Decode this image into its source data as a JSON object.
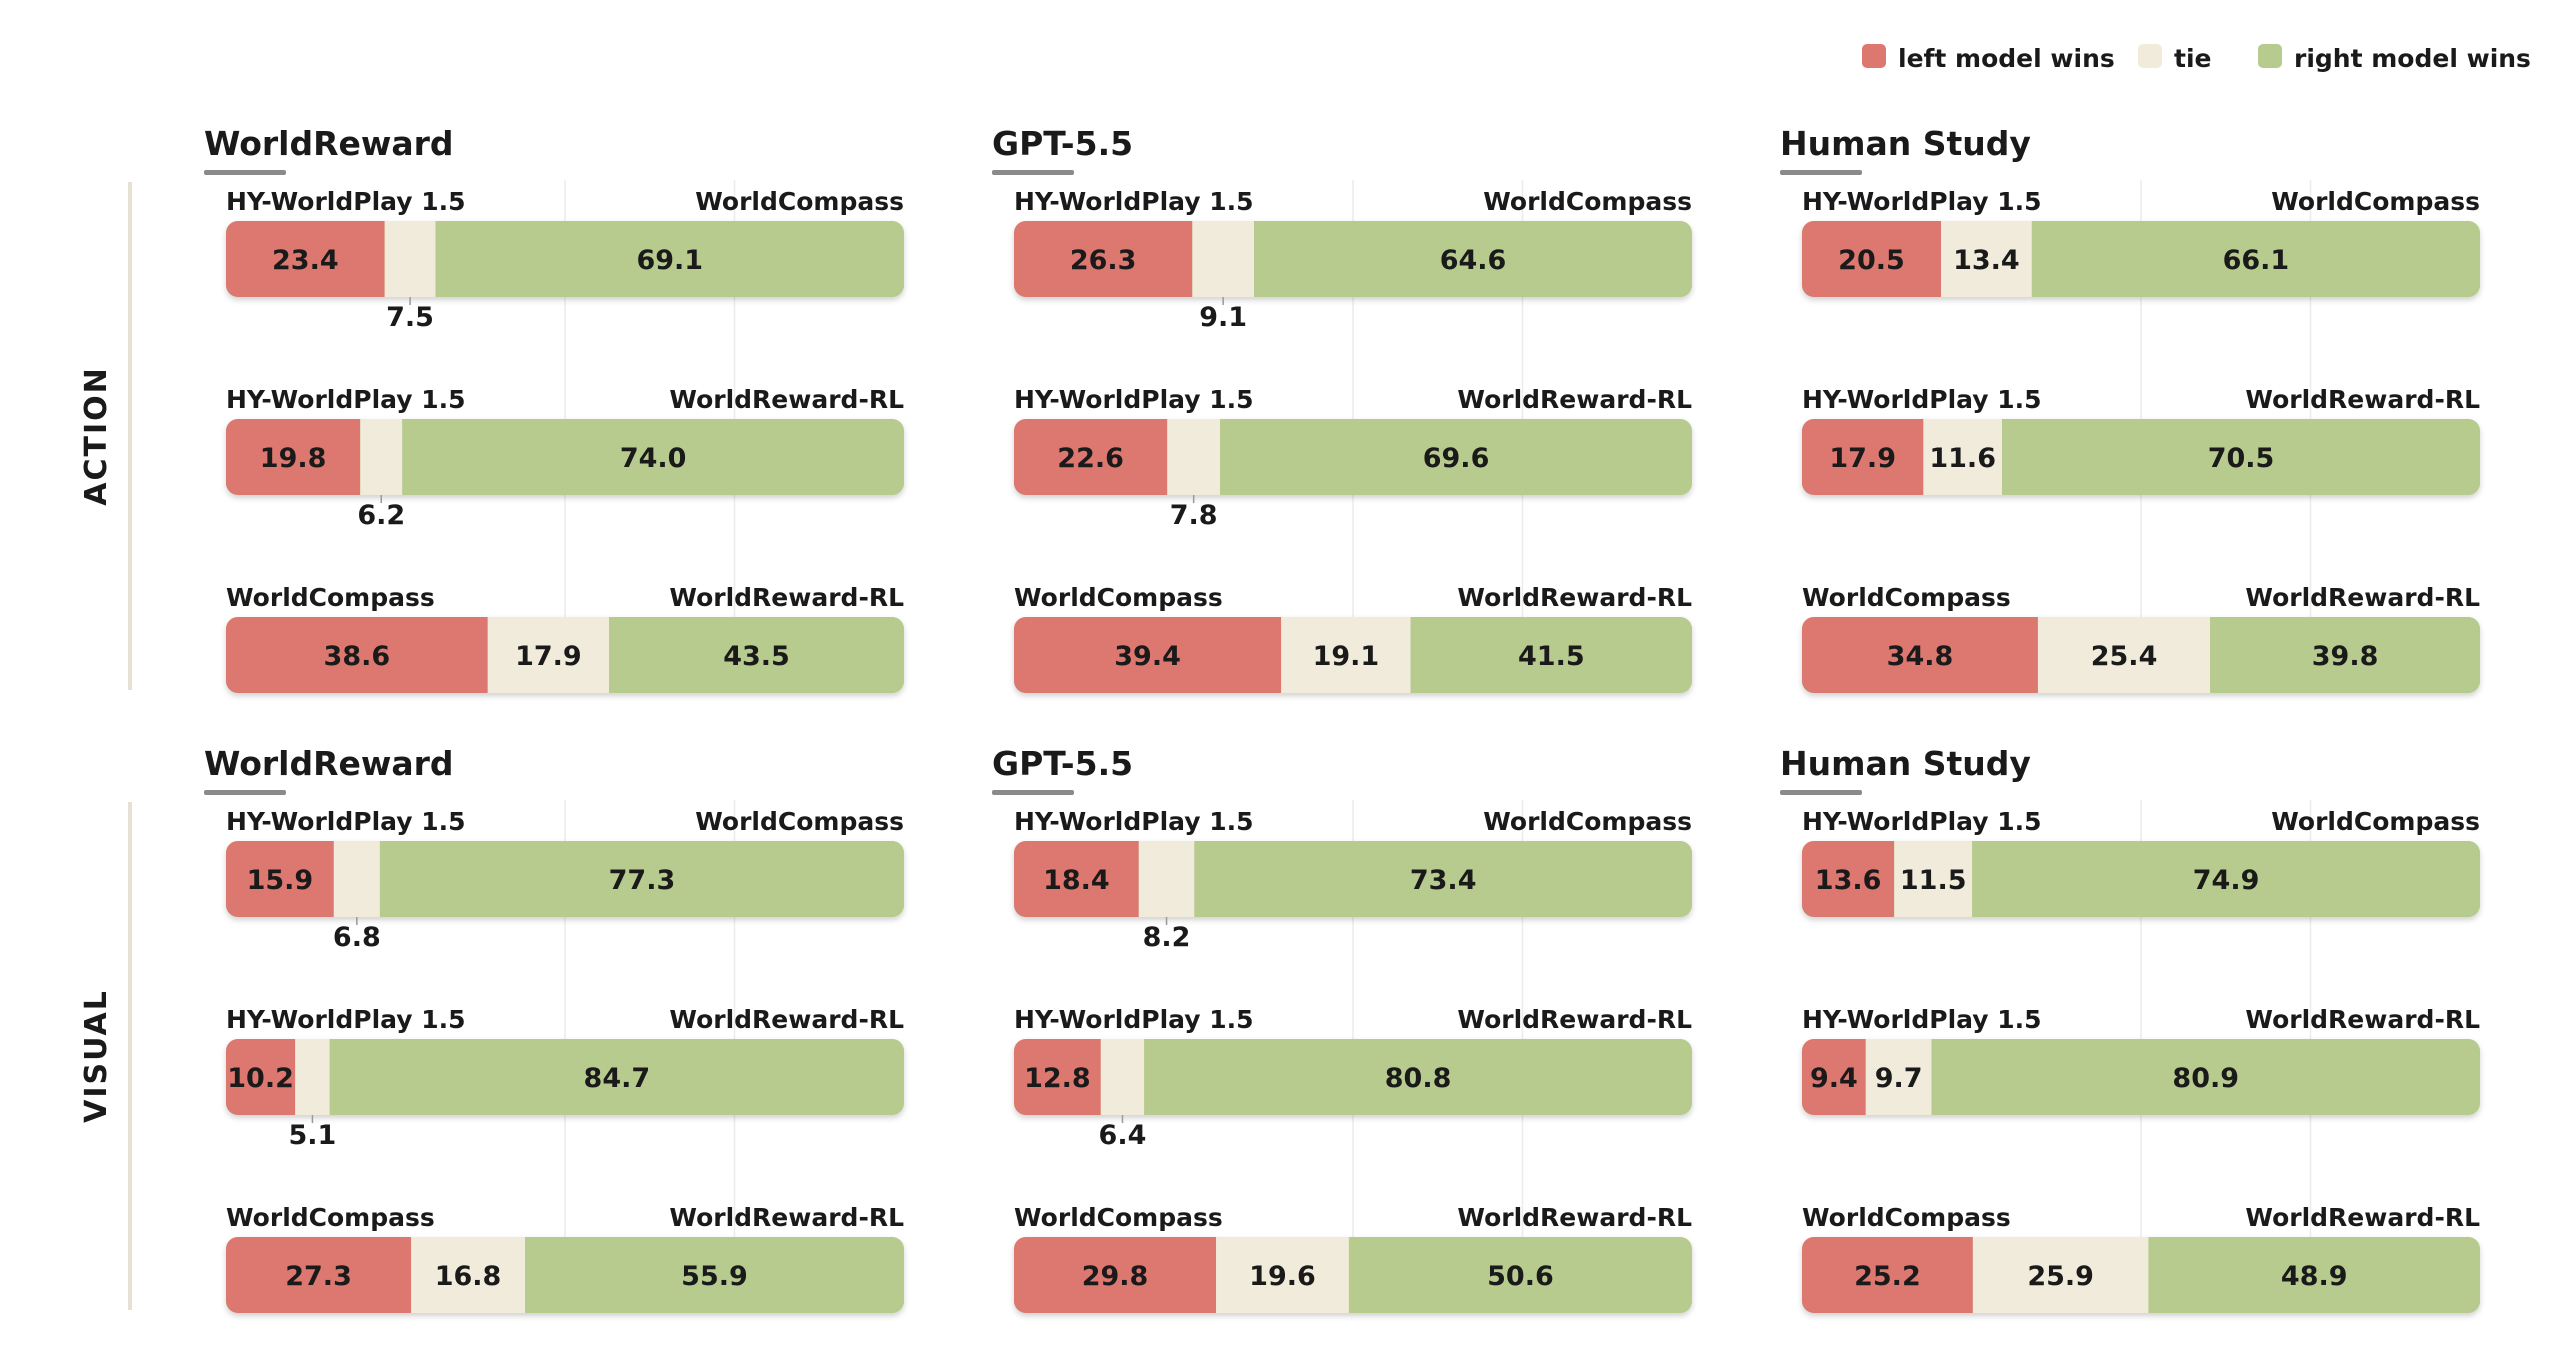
{
  "colors": {
    "left": "#dd7870",
    "tie": "#f1ebdb",
    "right": "#b8cb8e",
    "underline": "#8a8a8a",
    "group_bar": "#e6e1d2",
    "grid": "#ececec"
  },
  "legend": [
    {
      "key": "left",
      "label": "left model wins"
    },
    {
      "key": "tie",
      "label": "tie"
    },
    {
      "key": "right",
      "label": "right model wins"
    }
  ],
  "chart_data": {
    "type": "bar",
    "orientation": "horizontal-stacked",
    "groups": [
      {
        "label": "ACTION",
        "panels": [
          {
            "title": "WorldReward",
            "rows": [
              {
                "left_name": "HY-WorldPlay 1.5",
                "right_name": "WorldCompass",
                "left": 23.4,
                "tie": 7.5,
                "right": 69.1
              },
              {
                "left_name": "HY-WorldPlay 1.5",
                "right_name": "WorldReward-RL",
                "left": 19.8,
                "tie": 6.2,
                "right": 74.0
              },
              {
                "left_name": "WorldCompass",
                "right_name": "WorldReward-RL",
                "left": 38.6,
                "tie": 17.9,
                "right": 43.5
              }
            ]
          },
          {
            "title": "GPT-5.5",
            "rows": [
              {
                "left_name": "HY-WorldPlay 1.5",
                "right_name": "WorldCompass",
                "left": 26.3,
                "tie": 9.1,
                "right": 64.6
              },
              {
                "left_name": "HY-WorldPlay 1.5",
                "right_name": "WorldReward-RL",
                "left": 22.6,
                "tie": 7.8,
                "right": 69.6
              },
              {
                "left_name": "WorldCompass",
                "right_name": "WorldReward-RL",
                "left": 39.4,
                "tie": 19.1,
                "right": 41.5
              }
            ]
          },
          {
            "title": "Human Study",
            "rows": [
              {
                "left_name": "HY-WorldPlay 1.5",
                "right_name": "WorldCompass",
                "left": 20.5,
                "tie": 13.4,
                "right": 66.1
              },
              {
                "left_name": "HY-WorldPlay 1.5",
                "right_name": "WorldReward-RL",
                "left": 17.9,
                "tie": 11.6,
                "right": 70.5
              },
              {
                "left_name": "WorldCompass",
                "right_name": "WorldReward-RL",
                "left": 34.8,
                "tie": 25.4,
                "right": 39.8
              }
            ]
          }
        ]
      },
      {
        "label": "VISUAL",
        "panels": [
          {
            "title": "WorldReward",
            "rows": [
              {
                "left_name": "HY-WorldPlay 1.5",
                "right_name": "WorldCompass",
                "left": 15.9,
                "tie": 6.8,
                "right": 77.3
              },
              {
                "left_name": "HY-WorldPlay 1.5",
                "right_name": "WorldReward-RL",
                "left": 10.2,
                "tie": 5.1,
                "right": 84.7
              },
              {
                "left_name": "WorldCompass",
                "right_name": "WorldReward-RL",
                "left": 27.3,
                "tie": 16.8,
                "right": 55.9
              }
            ]
          },
          {
            "title": "GPT-5.5",
            "rows": [
              {
                "left_name": "HY-WorldPlay 1.5",
                "right_name": "WorldCompass",
                "left": 18.4,
                "tie": 8.2,
                "right": 73.4
              },
              {
                "left_name": "HY-WorldPlay 1.5",
                "right_name": "WorldReward-RL",
                "left": 12.8,
                "tie": 6.4,
                "right": 80.8
              },
              {
                "left_name": "WorldCompass",
                "right_name": "WorldReward-RL",
                "left": 29.8,
                "tie": 19.6,
                "right": 50.6
              }
            ]
          },
          {
            "title": "Human Study",
            "rows": [
              {
                "left_name": "HY-WorldPlay 1.5",
                "right_name": "WorldCompass",
                "left": 13.6,
                "tie": 11.5,
                "right": 74.9
              },
              {
                "left_name": "HY-WorldPlay 1.5",
                "right_name": "WorldReward-RL",
                "left": 9.4,
                "tie": 9.7,
                "right": 80.9
              },
              {
                "left_name": "WorldCompass",
                "right_name": "WorldReward-RL",
                "left": 25.2,
                "tie": 25.9,
                "right": 48.9
              }
            ]
          }
        ]
      }
    ]
  }
}
